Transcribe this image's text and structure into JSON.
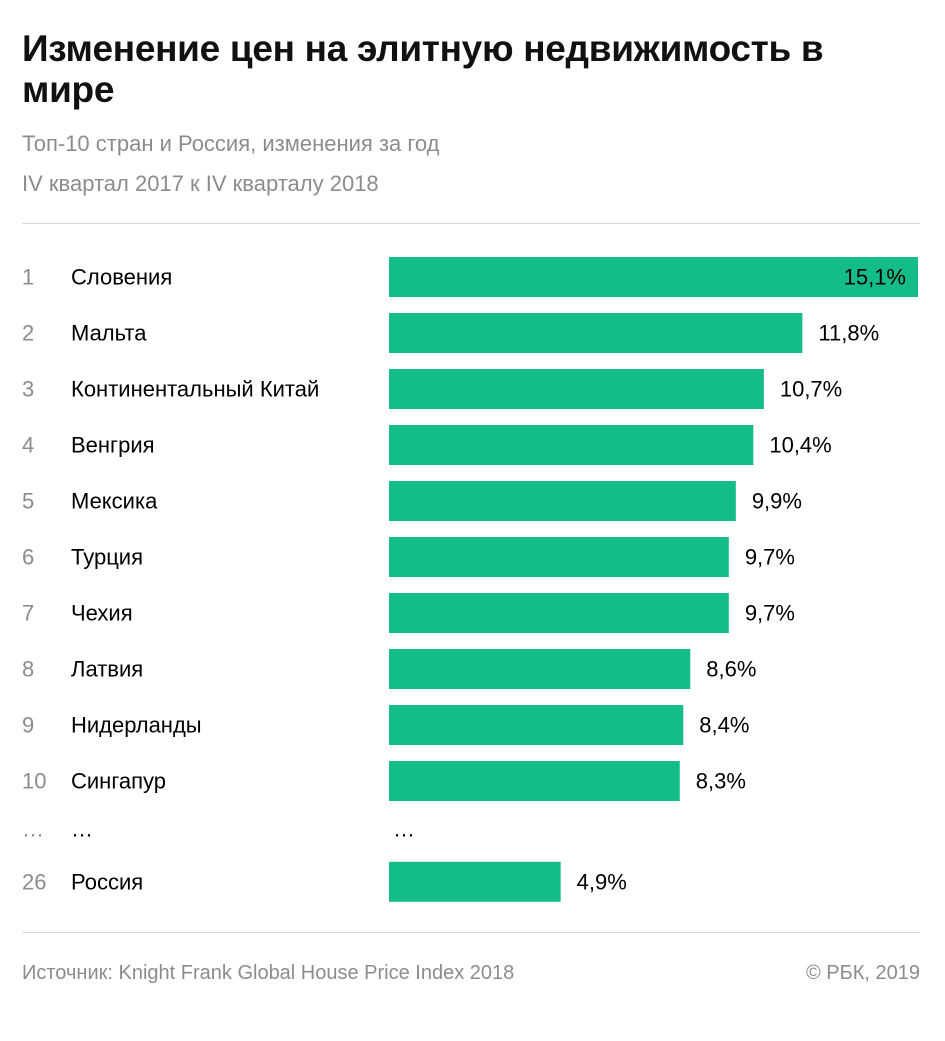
{
  "header": {
    "title": "Изменение цен на элитную недвижимость в мире",
    "subtitle_line1": "Топ-10 стран и Россия, изменения за год",
    "subtitle_line2": "IV квартал 2017 к IV кварталу 2018"
  },
  "footer": {
    "source": "Источник: Knight Frank Global House Price Index 2018",
    "copyright": "© РБК, 2019"
  },
  "colors": {
    "bar": "#14bd87",
    "rank_text": "#8c8c8c",
    "label_text": "#000000"
  },
  "chart_data": {
    "type": "bar",
    "orientation": "horizontal",
    "title": "Изменение цен на элитную недвижимость в мире",
    "subtitle": "Топ-10 стран и Россия, изменения за год. IV квартал 2017 к IV кварталу 2018",
    "xlabel": "",
    "ylabel": "",
    "xlim": [
      0,
      15.1
    ],
    "grid": false,
    "legend": "none",
    "ellipsis": {
      "rank": "…",
      "country": "…",
      "value": "…"
    },
    "rows": [
      {
        "rank": "1",
        "country": "Словения",
        "value": 15.1,
        "label": "15,1%"
      },
      {
        "rank": "2",
        "country": "Мальта",
        "value": 11.8,
        "label": "11,8%"
      },
      {
        "rank": "3",
        "country": "Континентальный Китай",
        "value": 10.7,
        "label": "10,7%"
      },
      {
        "rank": "4",
        "country": "Венгрия",
        "value": 10.4,
        "label": "10,4%"
      },
      {
        "rank": "5",
        "country": "Мексика",
        "value": 9.9,
        "label": "9,9%"
      },
      {
        "rank": "6",
        "country": "Турция",
        "value": 9.7,
        "label": "9,7%"
      },
      {
        "rank": "7",
        "country": "Чехия",
        "value": 9.7,
        "label": "9,7%"
      },
      {
        "rank": "8",
        "country": "Латвия",
        "value": 8.6,
        "label": "8,6%"
      },
      {
        "rank": "9",
        "country": "Нидерланды",
        "value": 8.4,
        "label": "8,4%"
      },
      {
        "rank": "10",
        "country": "Сингапур",
        "value": 8.3,
        "label": "8,3%"
      },
      {
        "rank": "26",
        "country": "Россия",
        "value": 4.9,
        "label": "4,9%",
        "after_ellipsis": true
      }
    ]
  }
}
